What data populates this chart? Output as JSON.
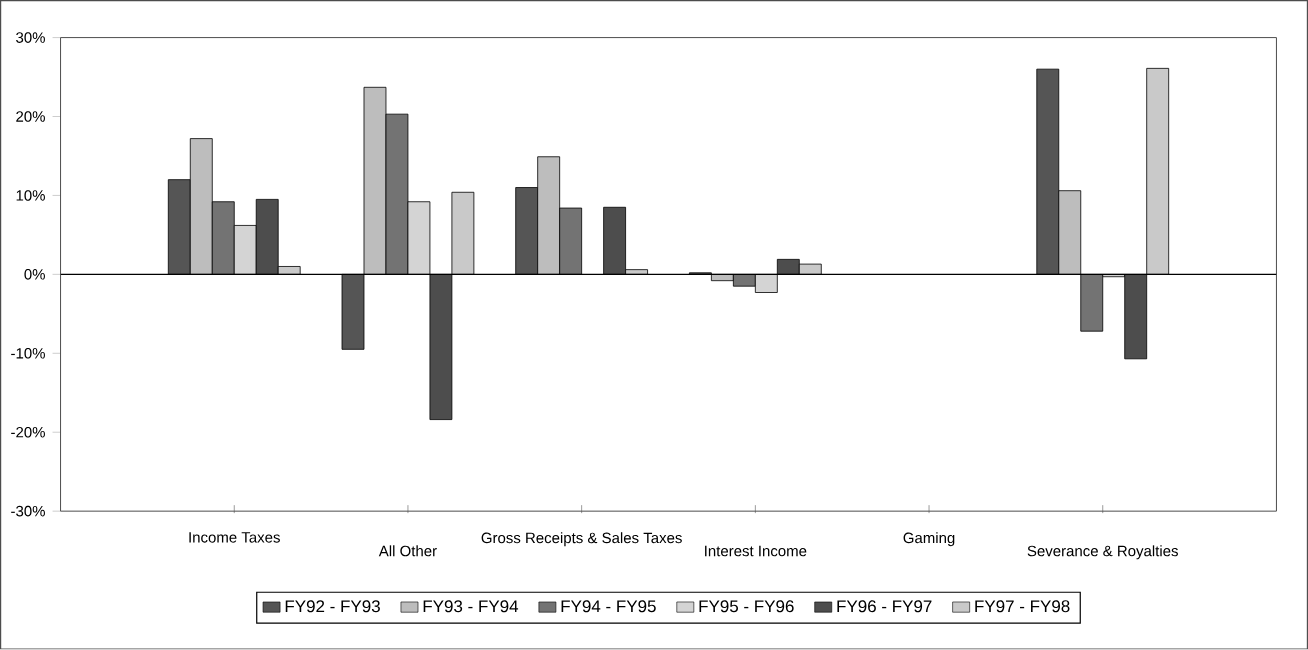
{
  "chart_data": {
    "type": "bar",
    "categories": [
      "Income Taxes",
      "All Other",
      "Gross Receipts & Sales Taxes",
      "Interest Income",
      "Gaming",
      "Severance & Royalties"
    ],
    "series": [
      {
        "name": "FY92 - FY93",
        "color": "#555555",
        "values": [
          12,
          -9.5,
          11,
          0.2,
          null,
          26
        ]
      },
      {
        "name": "FY93 - FY94",
        "color": "#bdbdbd",
        "values": [
          17.2,
          23.7,
          14.9,
          -0.8,
          null,
          10.6
        ]
      },
      {
        "name": "FY94 - FY95",
        "color": "#737373",
        "values": [
          9.2,
          20.3,
          8.4,
          -1.5,
          null,
          -7.2
        ]
      },
      {
        "name": "FY95 - FY96",
        "color": "#d4d4d4",
        "values": [
          6.2,
          9.2,
          null,
          -2.3,
          null,
          -0.3
        ]
      },
      {
        "name": "FY96 - FY97",
        "color": "#4d4d4d",
        "values": [
          9.5,
          -18.4,
          8.5,
          1.9,
          null,
          -10.7
        ]
      },
      {
        "name": "FY97 - FY98",
        "color": "#c9c9c9",
        "values": [
          1,
          10.4,
          0.6,
          1.3,
          null,
          26.1
        ]
      }
    ],
    "ylim": [
      -30,
      30
    ],
    "yticks": [
      {
        "value": -30,
        "label": "-30%"
      },
      {
        "value": -20,
        "label": "-20%"
      },
      {
        "value": -10,
        "label": "-10%"
      },
      {
        "value": 0,
        "label": "0%"
      },
      {
        "value": 10,
        "label": "10%"
      },
      {
        "value": 20,
        "label": "20%"
      },
      {
        "value": 30,
        "label": "30%"
      }
    ],
    "ref_lines": [
      {
        "axis": "y",
        "value": 0
      }
    ],
    "legend": "bottom",
    "grid": false
  }
}
